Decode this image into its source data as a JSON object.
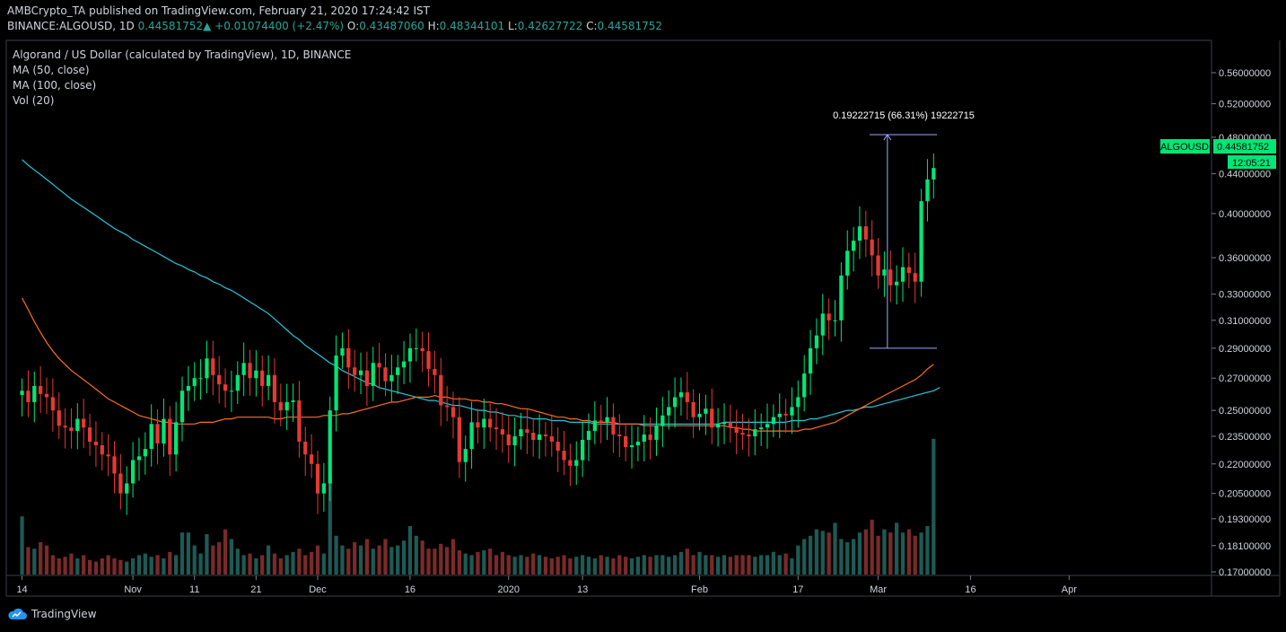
{
  "header": {
    "publisher": "AMBCrypto_TA",
    "published_text": "published on TradingView.com, February 21, 2020 17:24:42 IST",
    "symbol": "BINANCE:ALGOUSD, 1D",
    "last": "0.44581752",
    "arrow": "▲",
    "change": "+0.01074400 (+2.47%)",
    "o_label": "O:",
    "o": "0.43487060",
    "h_label": "H:",
    "h": "0.48344101",
    "l_label": "L:",
    "l": "0.42627722",
    "c_label": "C:",
    "c": "0.44581752"
  },
  "overlays": {
    "title": "Algorand / US Dollar (calculated by TradingView), 1D, BINANCE",
    "ma50": "MA (50, close)",
    "ma100": "MA (100, close)",
    "vol": "Vol (20)"
  },
  "price_tag": {
    "symbol": "ALGOUSD",
    "value": "0.44581752",
    "countdown": "12:05:21"
  },
  "measure": {
    "label": "0.19222715 (66.31%) 19222715",
    "from": 0.29,
    "to": 0.483
  },
  "brand": "TradingView",
  "colors": {
    "up": "#00e676",
    "down": "#e53935",
    "vol_up": "#1e5a55",
    "vol_down": "#7a2a2a",
    "ma50": "#ff6d1f",
    "ma100": "#26c6da",
    "measure": "#9fa8ff"
  },
  "chart_data": {
    "type": "candlestick",
    "timeframe": "1D",
    "yscale": "log",
    "yticks": [
      "0.56000000",
      "0.52000000",
      "0.48000000",
      "0.44000000",
      "0.40000000",
      "0.36000000",
      "0.33000000",
      "0.31000000",
      "0.29000000",
      "0.27000000",
      "0.25000000",
      "0.23500000",
      "0.22000000",
      "0.20500000",
      "0.19300000",
      "0.18100000",
      "0.17000000"
    ],
    "ytick_values": [
      0.56,
      0.52,
      0.48,
      0.44,
      0.4,
      0.36,
      0.33,
      0.31,
      0.29,
      0.27,
      0.25,
      0.235,
      0.22,
      0.205,
      0.193,
      0.181,
      0.17
    ],
    "xticks": [
      {
        "label": "14",
        "date": "2019-10-14"
      },
      {
        "label": "Nov",
        "date": "2019-11-01"
      },
      {
        "label": "11",
        "date": "2019-11-11"
      },
      {
        "label": "21",
        "date": "2019-11-21"
      },
      {
        "label": "Dec",
        "date": "2019-12-01"
      },
      {
        "label": "16",
        "date": "2019-12-16"
      },
      {
        "label": "2020",
        "date": "2020-01-01"
      },
      {
        "label": "13",
        "date": "2020-01-13"
      },
      {
        "label": "Feb",
        "date": "2020-02-01"
      },
      {
        "label": "17",
        "date": "2020-02-17"
      },
      {
        "label": "Mar",
        "date": "2020-03-01"
      },
      {
        "label": "16",
        "date": "2020-03-16"
      },
      {
        "label": "Apr",
        "date": "2020-04-01"
      }
    ],
    "start_date": "2019-10-13",
    "closes": [
      0.262,
      0.255,
      0.265,
      0.26,
      0.258,
      0.25,
      0.241,
      0.24,
      0.238,
      0.245,
      0.24,
      0.232,
      0.23,
      0.225,
      0.224,
      0.215,
      0.205,
      0.21,
      0.222,
      0.224,
      0.228,
      0.242,
      0.231,
      0.245,
      0.225,
      0.243,
      0.262,
      0.265,
      0.27,
      0.27,
      0.283,
      0.272,
      0.266,
      0.262,
      0.262,
      0.272,
      0.28,
      0.27,
      0.275,
      0.265,
      0.272,
      0.255,
      0.25,
      0.255,
      0.256,
      0.232,
      0.225,
      0.22,
      0.205,
      0.21,
      0.25,
      0.285,
      0.29,
      0.277,
      0.272,
      0.275,
      0.265,
      0.28,
      0.277,
      0.268,
      0.272,
      0.277,
      0.281,
      0.29,
      0.29,
      0.288,
      0.276,
      0.272,
      0.253,
      0.252,
      0.246,
      0.221,
      0.228,
      0.243,
      0.24,
      0.245,
      0.24,
      0.239,
      0.236,
      0.23,
      0.235,
      0.239,
      0.237,
      0.233,
      0.236,
      0.235,
      0.232,
      0.227,
      0.222,
      0.219,
      0.222,
      0.233,
      0.238,
      0.244,
      0.243,
      0.246,
      0.236,
      0.235,
      0.229,
      0.23,
      0.232,
      0.236,
      0.233,
      0.241,
      0.247,
      0.252,
      0.258,
      0.261,
      0.255,
      0.246,
      0.248,
      0.251,
      0.24,
      0.242,
      0.243,
      0.24,
      0.237,
      0.236,
      0.235,
      0.239,
      0.24,
      0.242,
      0.246,
      0.248,
      0.247,
      0.252,
      0.258,
      0.273,
      0.29,
      0.299,
      0.315,
      0.31,
      0.31,
      0.345,
      0.366,
      0.375,
      0.388,
      0.376,
      0.362,
      0.345,
      0.35,
      0.337,
      0.34,
      0.352,
      0.347,
      0.34,
      0.412,
      0.434,
      0.446
    ],
    "ma50": [
      0.327,
      0.318,
      0.309,
      0.301,
      0.294,
      0.288,
      0.283,
      0.279,
      0.275,
      0.272,
      0.269,
      0.266,
      0.263,
      0.26,
      0.257,
      0.255,
      0.253,
      0.251,
      0.249,
      0.247,
      0.246,
      0.245,
      0.244,
      0.243,
      0.243,
      0.242,
      0.242,
      0.242,
      0.242,
      0.243,
      0.243,
      0.243,
      0.244,
      0.245,
      0.245,
      0.246,
      0.246,
      0.246,
      0.246,
      0.246,
      0.246,
      0.245,
      0.245,
      0.246,
      0.246,
      0.246,
      0.246,
      0.246,
      0.246,
      0.247,
      0.247,
      0.247,
      0.248,
      0.248,
      0.249,
      0.25,
      0.251,
      0.252,
      0.253,
      0.254,
      0.255,
      0.255,
      0.256,
      0.257,
      0.258,
      0.258,
      0.258,
      0.259,
      0.258,
      0.258,
      0.257,
      0.257,
      0.257,
      0.256,
      0.256,
      0.255,
      0.255,
      0.254,
      0.254,
      0.253,
      0.252,
      0.251,
      0.251,
      0.25,
      0.249,
      0.248,
      0.247,
      0.246,
      0.246,
      0.245,
      0.245,
      0.244,
      0.244,
      0.243,
      0.243,
      0.243,
      0.243,
      0.242,
      0.242,
      0.242,
      0.242,
      0.241,
      0.241,
      0.241,
      0.241,
      0.241,
      0.241,
      0.241,
      0.241,
      0.241,
      0.241,
      0.241,
      0.241,
      0.241,
      0.241,
      0.24,
      0.24,
      0.239,
      0.239,
      0.238,
      0.238,
      0.238,
      0.238,
      0.238,
      0.238,
      0.238,
      0.238,
      0.239,
      0.239,
      0.24,
      0.241,
      0.242,
      0.243,
      0.245,
      0.247,
      0.249,
      0.251,
      0.253,
      0.255,
      0.257,
      0.259,
      0.261,
      0.263,
      0.265,
      0.267,
      0.269,
      0.272,
      0.276,
      0.279
    ],
    "ma100": [
      0.455,
      0.449,
      0.444,
      0.439,
      0.434,
      0.429,
      0.424,
      0.419,
      0.414,
      0.41,
      0.406,
      0.402,
      0.398,
      0.394,
      0.39,
      0.386,
      0.383,
      0.38,
      0.376,
      0.373,
      0.37,
      0.367,
      0.364,
      0.361,
      0.358,
      0.355,
      0.353,
      0.35,
      0.348,
      0.345,
      0.343,
      0.34,
      0.338,
      0.335,
      0.333,
      0.33,
      0.327,
      0.324,
      0.321,
      0.318,
      0.315,
      0.311,
      0.307,
      0.303,
      0.299,
      0.296,
      0.292,
      0.289,
      0.286,
      0.283,
      0.28,
      0.278,
      0.275,
      0.273,
      0.271,
      0.269,
      0.267,
      0.266,
      0.264,
      0.263,
      0.262,
      0.261,
      0.26,
      0.259,
      0.258,
      0.257,
      0.256,
      0.256,
      0.255,
      0.254,
      0.253,
      0.253,
      0.252,
      0.251,
      0.25,
      0.25,
      0.249,
      0.249,
      0.248,
      0.247,
      0.247,
      0.246,
      0.246,
      0.245,
      0.245,
      0.245,
      0.244,
      0.244,
      0.244,
      0.243,
      0.243,
      0.243,
      0.243,
      0.242,
      0.242,
      0.242,
      0.242,
      0.242,
      0.242,
      0.242,
      0.242,
      0.242,
      0.242,
      0.242,
      0.242,
      0.242,
      0.242,
      0.242,
      0.242,
      0.242,
      0.242,
      0.242,
      0.242,
      0.242,
      0.243,
      0.243,
      0.243,
      0.243,
      0.243,
      0.243,
      0.243,
      0.243,
      0.243,
      0.243,
      0.243,
      0.244,
      0.244,
      0.244,
      0.245,
      0.245,
      0.246,
      0.247,
      0.248,
      0.249,
      0.25,
      0.25,
      0.251,
      0.252,
      0.252,
      0.253,
      0.254,
      0.255,
      0.256,
      0.257,
      0.258,
      0.259,
      0.26,
      0.261,
      0.262,
      0.264
    ],
    "volume_max_label": "",
    "volume": [
      0.36,
      0.17,
      0.16,
      0.2,
      0.18,
      0.12,
      0.1,
      0.11,
      0.13,
      0.1,
      0.12,
      0.09,
      0.08,
      0.1,
      0.12,
      0.1,
      0.09,
      0.08,
      0.1,
      0.12,
      0.13,
      0.11,
      0.12,
      0.1,
      0.14,
      0.12,
      0.26,
      0.26,
      0.18,
      0.13,
      0.25,
      0.18,
      0.2,
      0.28,
      0.22,
      0.16,
      0.12,
      0.13,
      0.1,
      0.12,
      0.18,
      0.13,
      0.1,
      0.12,
      0.14,
      0.16,
      0.12,
      0.14,
      0.18,
      0.13,
      0.6,
      0.24,
      0.18,
      0.16,
      0.2,
      0.18,
      0.22,
      0.16,
      0.18,
      0.22,
      0.17,
      0.18,
      0.21,
      0.3,
      0.24,
      0.21,
      0.16,
      0.16,
      0.19,
      0.17,
      0.22,
      0.15,
      0.13,
      0.12,
      0.14,
      0.15,
      0.16,
      0.12,
      0.14,
      0.12,
      0.11,
      0.12,
      0.11,
      0.13,
      0.12,
      0.11,
      0.1,
      0.11,
      0.12,
      0.1,
      0.11,
      0.12,
      0.11,
      0.1,
      0.12,
      0.11,
      0.1,
      0.12,
      0.11,
      0.1,
      0.11,
      0.12,
      0.11,
      0.12,
      0.12,
      0.11,
      0.12,
      0.14,
      0.16,
      0.12,
      0.14,
      0.12,
      0.12,
      0.11,
      0.12,
      0.11,
      0.12,
      0.12,
      0.12,
      0.11,
      0.12,
      0.12,
      0.14,
      0.12,
      0.13,
      0.1,
      0.18,
      0.22,
      0.24,
      0.28,
      0.27,
      0.26,
      0.32,
      0.22,
      0.2,
      0.22,
      0.26,
      0.28,
      0.34,
      0.24,
      0.28,
      0.26,
      0.32,
      0.26,
      0.28,
      0.24,
      0.26,
      0.3,
      0.84,
      0.56
    ]
  }
}
